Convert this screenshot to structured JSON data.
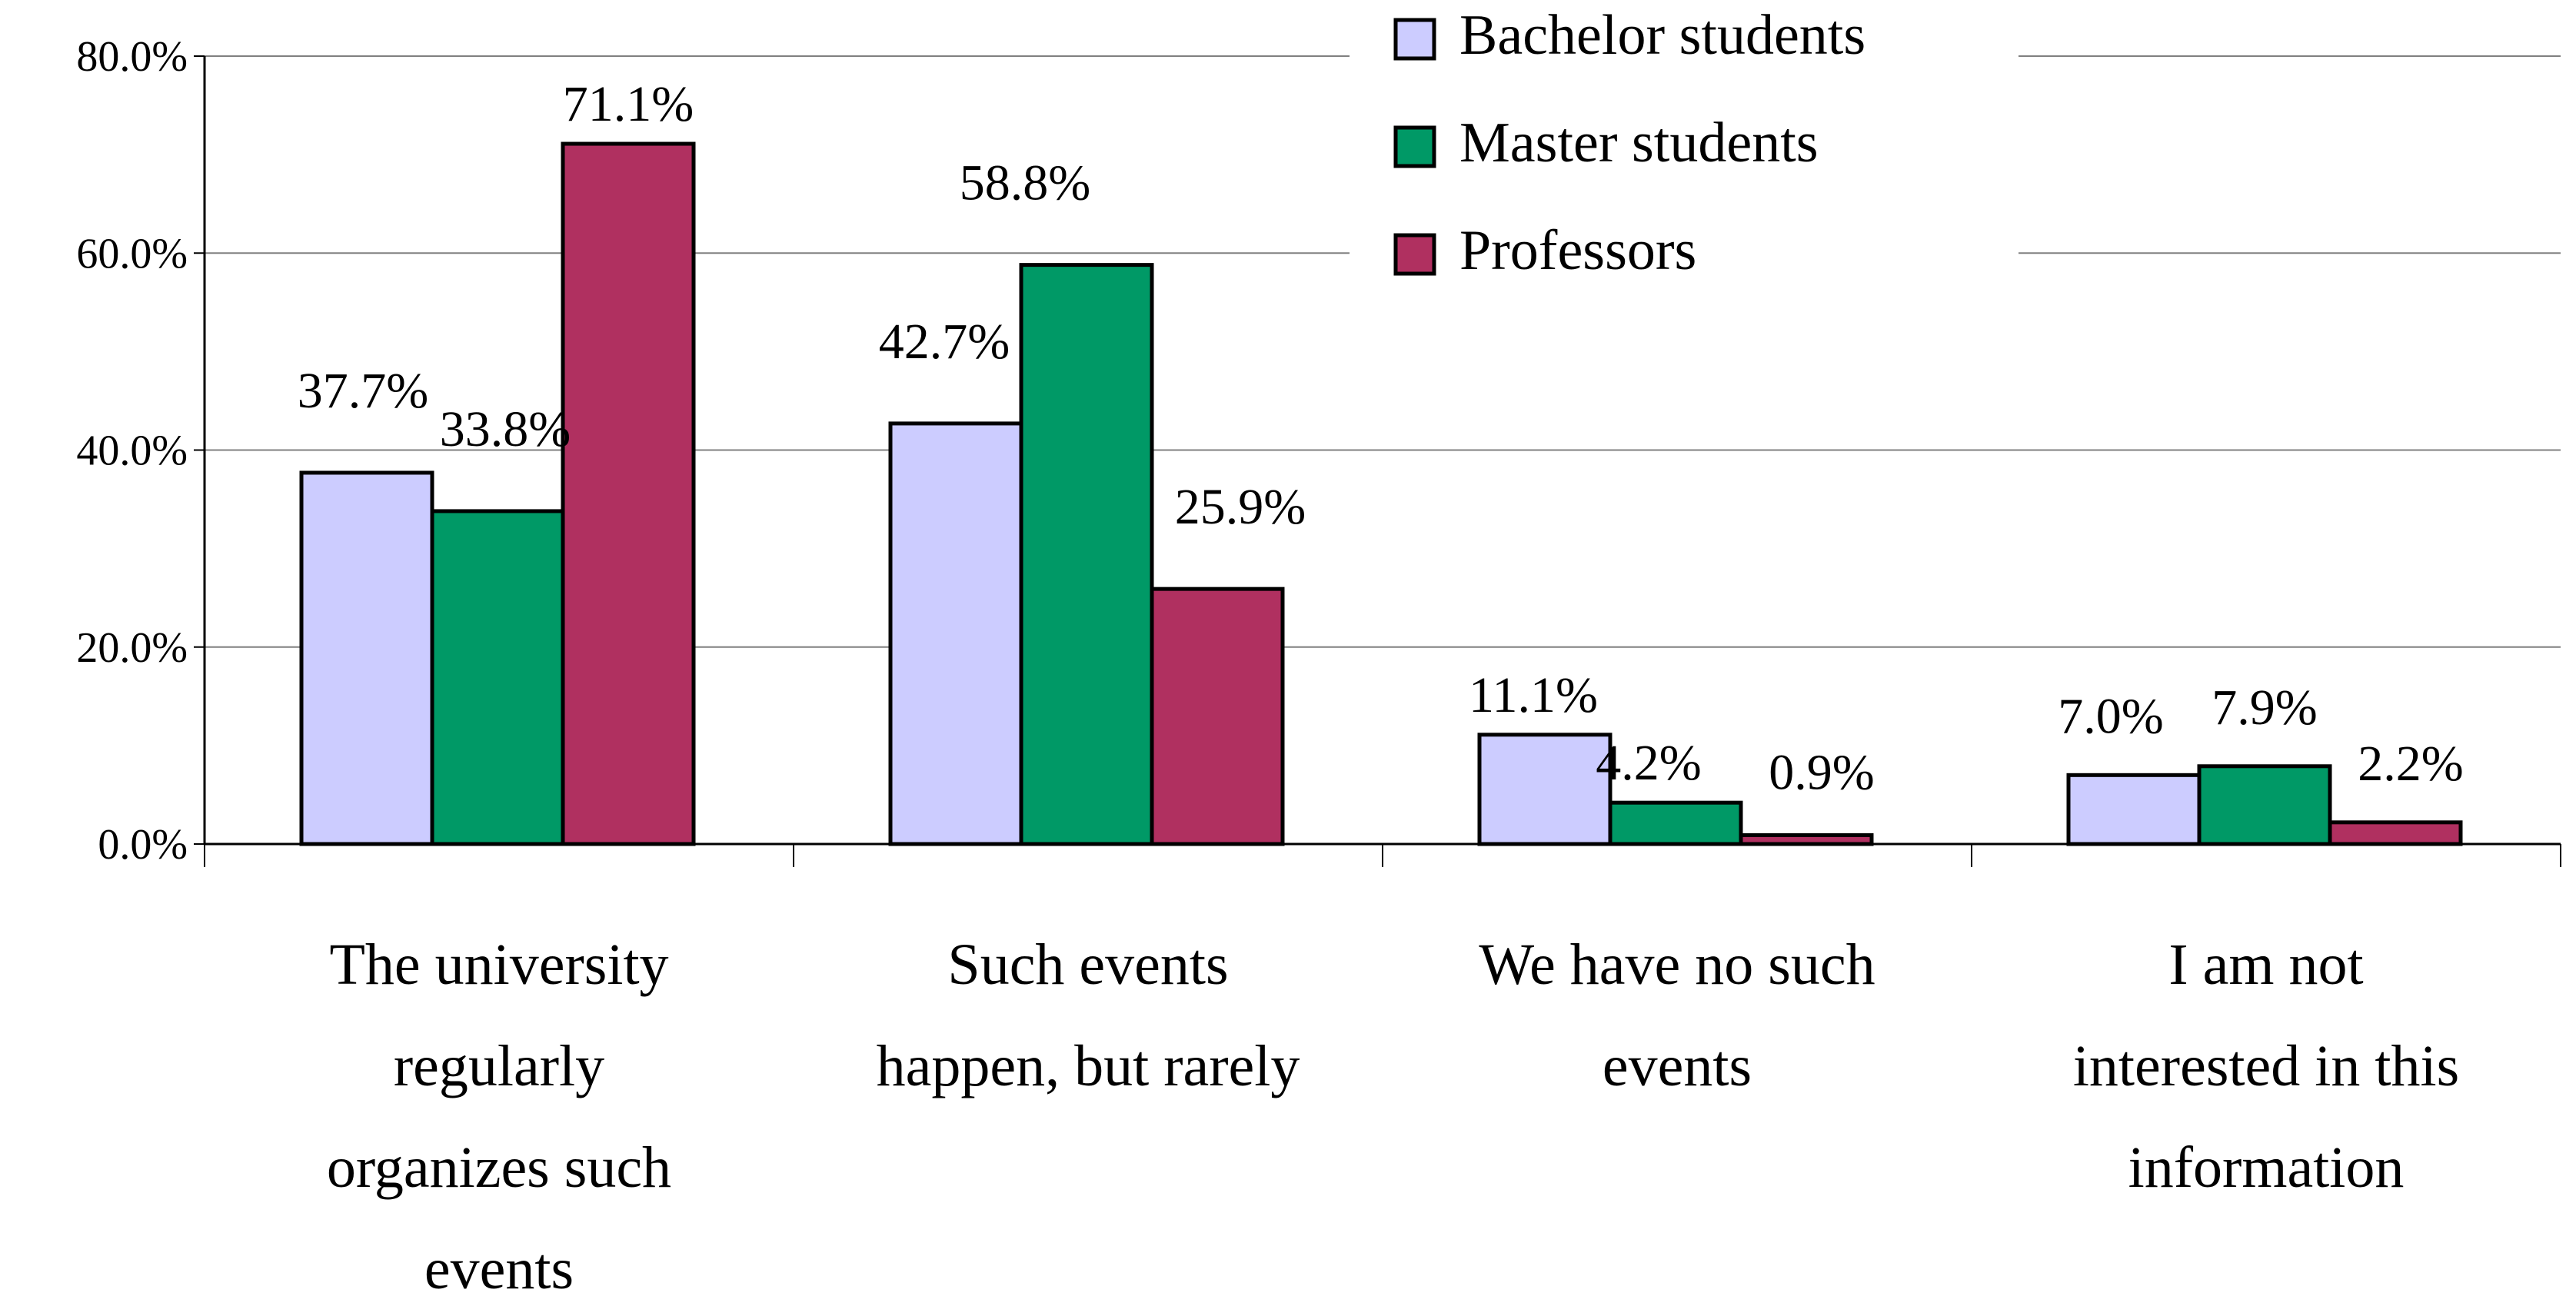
{
  "chart_data": {
    "type": "bar",
    "title": "",
    "xlabel": "",
    "ylabel": "",
    "ylim": [
      0,
      80
    ],
    "y_ticks": [
      0,
      20,
      40,
      60,
      80
    ],
    "y_tick_labels": [
      "0.0%",
      "20.0%",
      "40.0%",
      "60.0%",
      "80.0%"
    ],
    "value_suffix": "%",
    "grid": true,
    "legend_position": "top-right",
    "categories": [
      "The university regularly organizes such events",
      "Such events happen, but rarely",
      "We have no such events",
      "I am not interested in this information"
    ],
    "category_lines": [
      [
        "The university",
        "regularly",
        "organizes such",
        "events"
      ],
      [
        "Such events",
        "happen, but rarely"
      ],
      [
        "We have no such",
        "events"
      ],
      [
        "I am not",
        "interested in this",
        "information"
      ]
    ],
    "series": [
      {
        "name": "Bachelor students",
        "color": "#ccccff",
        "values": [
          37.7,
          42.7,
          11.1,
          7.0
        ],
        "labels": [
          "37.7%",
          "42.7%",
          "11.1%",
          "7.0%"
        ]
      },
      {
        "name": "Master students",
        "color": "#009966",
        "values": [
          33.8,
          58.8,
          4.2,
          7.9
        ],
        "labels": [
          "33.8%",
          "58.8%",
          "4.2%",
          "7.9%"
        ]
      },
      {
        "name": "Professors",
        "color": "#b03060",
        "values": [
          71.1,
          25.9,
          0.9,
          2.2
        ],
        "labels": [
          "71.1%",
          "25.9%",
          "0.9%",
          "2.2%"
        ]
      }
    ]
  }
}
